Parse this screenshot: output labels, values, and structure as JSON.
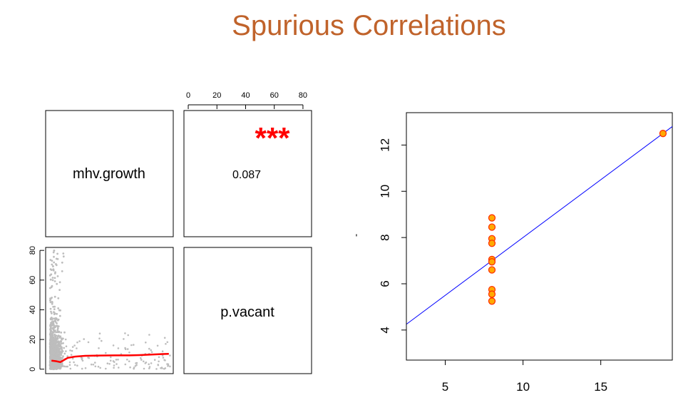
{
  "page": {
    "title": "Spurious Correlations",
    "title_color": "#c0632b"
  },
  "chart_data": [
    {
      "type": "scatter",
      "description_role": "pairs-matrix",
      "variables": [
        "mhv.growth",
        "p.vacant"
      ],
      "correlation": {
        "value_label": "0.087",
        "stars": "***"
      },
      "top_axis": {
        "ticks": [
          "0",
          "20",
          "40",
          "60",
          "80"
        ],
        "lim": [
          -3,
          86
        ]
      },
      "left_axis": {
        "ticks": [
          "0",
          "20",
          "40",
          "60",
          "80"
        ],
        "lim": [
          -3,
          82
        ]
      },
      "scatter_xlim": [
        -2,
        85
      ],
      "scatter_ylim": [
        -3,
        82
      ],
      "point_color": "#bdbdbd",
      "smooth_color": "#ff0000",
      "smooth_line": {
        "x": [
          2,
          5,
          8,
          10,
          13,
          18,
          25,
          35,
          45,
          55,
          62,
          70,
          78,
          82
        ],
        "y": [
          5.8,
          5.4,
          4.8,
          5.9,
          7.6,
          8.5,
          9.0,
          9.2,
          9.3,
          9.3,
          9.5,
          9.8,
          10.2,
          10.3
        ]
      },
      "annotation_color": "#ff0000"
    },
    {
      "type": "scatter",
      "xlim": [
        2.5,
        19.6
      ],
      "ylim": [
        2.7,
        13.4
      ],
      "xticks": [
        "5",
        "10",
        "15"
      ],
      "yticks": [
        "4",
        "6",
        "8",
        "10",
        "12"
      ],
      "ylabel": "'",
      "points": [
        {
          "x": 8,
          "y": 8.85
        },
        {
          "x": 8,
          "y": 8.45
        },
        {
          "x": 8,
          "y": 7.95
        },
        {
          "x": 8,
          "y": 7.75
        },
        {
          "x": 8,
          "y": 7.05
        },
        {
          "x": 8,
          "y": 6.95
        },
        {
          "x": 8,
          "y": 6.6
        },
        {
          "x": 8,
          "y": 5.75
        },
        {
          "x": 8,
          "y": 5.55
        },
        {
          "x": 8,
          "y": 5.25
        },
        {
          "x": 19,
          "y": 12.5
        }
      ],
      "regression": {
        "intercept": 3.0,
        "slope": 0.5
      },
      "point_fill": "#ffaa00",
      "point_stroke": "#ff3300",
      "line_color": "#0000ff"
    }
  ]
}
